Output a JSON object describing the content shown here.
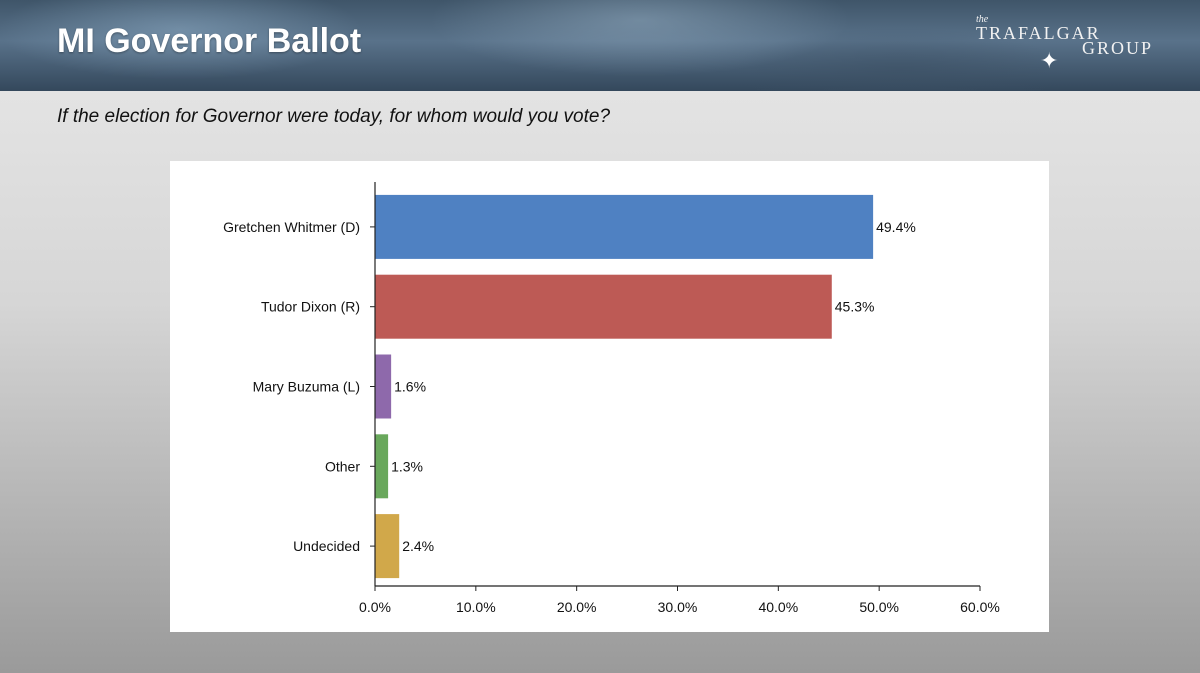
{
  "header": {
    "title": "MI Governor Ballot",
    "logo": {
      "small": "the",
      "line1": "TRAFALGAR",
      "line2": "GROUP"
    }
  },
  "question": "If the election for Governor were today, for whom would you vote?",
  "chart_data": {
    "type": "bar",
    "orientation": "horizontal",
    "categories": [
      "Gretchen Whitmer (D)",
      "Tudor Dixon (R)",
      "Mary Buzuma (L)",
      "Other",
      "Undecided"
    ],
    "values": [
      49.4,
      45.3,
      1.6,
      1.3,
      2.4
    ],
    "value_labels": [
      "49.4%",
      "45.3%",
      "1.6%",
      "1.3%",
      "2.4%"
    ],
    "colors": [
      "#4f81c2",
      "#bd5a55",
      "#8e69ab",
      "#69a85c",
      "#d1a84a"
    ],
    "xlim": [
      0,
      60
    ],
    "x_ticks": [
      0,
      10,
      20,
      30,
      40,
      50,
      60
    ],
    "x_tick_labels": [
      "0.0%",
      "10.0%",
      "20.0%",
      "30.0%",
      "40.0%",
      "50.0%",
      "60.0%"
    ],
    "grid": false,
    "legend": false
  }
}
